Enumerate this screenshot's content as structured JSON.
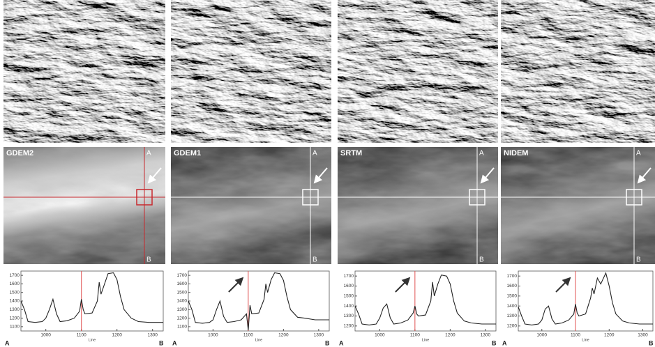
{
  "panels": [
    {
      "label": "GDEM2",
      "top": "A",
      "bottom": "B",
      "crosshair_color": "#c8282d"
    },
    {
      "label": "GDEM1",
      "top": "A",
      "bottom": "B",
      "crosshair_color": "#ffffff"
    },
    {
      "label": "SRTM",
      "top": "A",
      "bottom": "B",
      "crosshair_color": "#ffffff"
    },
    {
      "label": "NIDEM",
      "top": "A",
      "bottom": "B",
      "crosshair_color": "#ffffff"
    }
  ],
  "chart_data": [
    {
      "type": "line",
      "xlabel": "Line",
      "start_label": "A",
      "end_label": "B",
      "color": "#222222",
      "marker_x": 1100,
      "marker_color": "#e05050",
      "x": [
        930,
        940,
        950,
        970,
        990,
        1000,
        1010,
        1020,
        1030,
        1040,
        1060,
        1080,
        1095,
        1100,
        1105,
        1110,
        1130,
        1145,
        1150,
        1155,
        1165,
        1175,
        1190,
        1200,
        1210,
        1220,
        1240,
        1260,
        1290,
        1330
      ],
      "values": [
        1400,
        1300,
        1160,
        1150,
        1160,
        1200,
        1300,
        1420,
        1250,
        1160,
        1170,
        1200,
        1280,
        1420,
        1300,
        1250,
        1260,
        1400,
        1620,
        1480,
        1600,
        1720,
        1730,
        1650,
        1450,
        1300,
        1200,
        1160,
        1150,
        1150
      ],
      "xlim": [
        930,
        1330
      ],
      "ylim": [
        1050,
        1750
      ],
      "xticks": [
        1000,
        1100,
        1200,
        1300
      ],
      "yticks": [
        1100,
        1200,
        1300,
        1400,
        1500,
        1600,
        1700
      ]
    },
    {
      "type": "line",
      "xlabel": "Line",
      "start_label": "A",
      "end_label": "B",
      "color": "#222222",
      "marker_x": 1100,
      "marker_color": "#e05050",
      "x": [
        930,
        940,
        950,
        970,
        990,
        1000,
        1010,
        1020,
        1030,
        1040,
        1060,
        1080,
        1095,
        1100,
        1105,
        1110,
        1130,
        1145,
        1150,
        1155,
        1165,
        1175,
        1190,
        1200,
        1210,
        1220,
        1240,
        1260,
        1290,
        1330
      ],
      "values": [
        1400,
        1300,
        1150,
        1140,
        1150,
        1180,
        1300,
        1400,
        1220,
        1150,
        1160,
        1180,
        1250,
        1060,
        1350,
        1250,
        1260,
        1420,
        1600,
        1500,
        1650,
        1730,
        1720,
        1640,
        1450,
        1300,
        1210,
        1200,
        1180,
        1180
      ],
      "xlim": [
        930,
        1330
      ],
      "ylim": [
        1050,
        1750
      ],
      "xticks": [
        1000,
        1100,
        1200,
        1300
      ],
      "yticks": [
        1100,
        1200,
        1300,
        1400,
        1500,
        1600,
        1700
      ]
    },
    {
      "type": "line",
      "xlabel": "Line",
      "start_label": "A",
      "end_label": "B",
      "color": "#222222",
      "marker_x": 1100,
      "marker_color": "#e05050",
      "x": [
        930,
        940,
        950,
        970,
        990,
        1000,
        1010,
        1020,
        1030,
        1040,
        1060,
        1080,
        1095,
        1100,
        1105,
        1110,
        1130,
        1145,
        1150,
        1155,
        1165,
        1175,
        1190,
        1200,
        1210,
        1220,
        1240,
        1260,
        1290,
        1330
      ],
      "values": [
        1400,
        1320,
        1220,
        1210,
        1220,
        1280,
        1380,
        1420,
        1280,
        1220,
        1230,
        1260,
        1330,
        1400,
        1320,
        1300,
        1310,
        1450,
        1640,
        1500,
        1620,
        1710,
        1700,
        1620,
        1450,
        1330,
        1250,
        1230,
        1220,
        1220
      ],
      "xlim": [
        930,
        1330
      ],
      "ylim": [
        1150,
        1750
      ],
      "xticks": [
        1000,
        1100,
        1200,
        1300
      ],
      "yticks": [
        1200,
        1300,
        1400,
        1500,
        1600,
        1700
      ]
    },
    {
      "type": "line",
      "xlabel": "Line",
      "start_label": "A",
      "end_label": "B",
      "color": "#222222",
      "marker_x": 1100,
      "marker_color": "#e05050",
      "x": [
        930,
        940,
        950,
        970,
        990,
        1000,
        1010,
        1020,
        1030,
        1040,
        1060,
        1080,
        1095,
        1100,
        1105,
        1110,
        1130,
        1145,
        1150,
        1155,
        1165,
        1175,
        1190,
        1200,
        1210,
        1220,
        1240,
        1260,
        1290,
        1330
      ],
      "values": [
        1390,
        1300,
        1220,
        1210,
        1220,
        1260,
        1370,
        1400,
        1270,
        1220,
        1230,
        1260,
        1320,
        1420,
        1330,
        1300,
        1320,
        1480,
        1580,
        1520,
        1680,
        1620,
        1730,
        1600,
        1430,
        1320,
        1250,
        1230,
        1220,
        1220
      ],
      "xlim": [
        930,
        1330
      ],
      "ylim": [
        1150,
        1750
      ],
      "xticks": [
        1000,
        1100,
        1200,
        1300
      ],
      "yticks": [
        1200,
        1300,
        1400,
        1500,
        1600,
        1700
      ]
    }
  ]
}
